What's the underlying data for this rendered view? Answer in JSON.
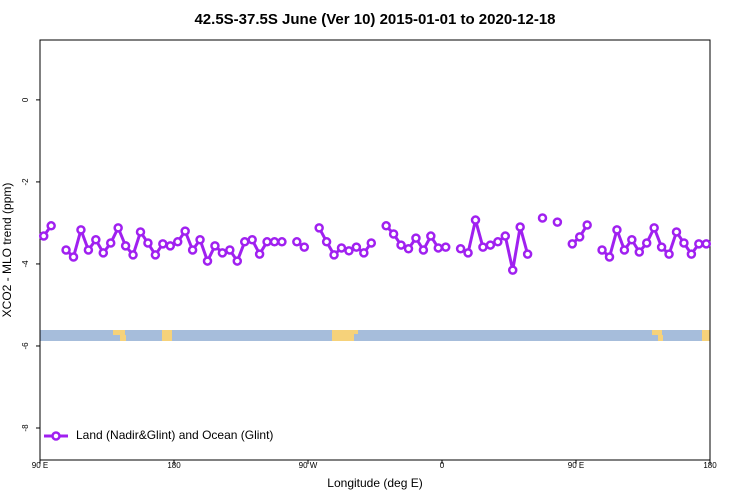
{
  "chart_data": {
    "type": "line",
    "title": "42.5S-37.5S June (Ver 10)   2015-01-01 to 2020-12-18",
    "x_label": "Longitude (deg E)",
    "y_label": "XCO2 - MLO trend (ppm)",
    "xlim": [
      90,
      540
    ],
    "ylim": [
      -8.78,
      1.46
    ],
    "xticks": [
      {
        "value": 90,
        "label": "90 E"
      },
      180,
      {
        "value": 270,
        "label": "90 W"
      },
      {
        "value": 360,
        "label": "0"
      },
      {
        "value": 450,
        "label": "90 E"
      },
      {
        "value": 540,
        "label": "180"
      }
    ],
    "yticks": [
      0,
      -2,
      -4,
      -6,
      -8
    ],
    "legend": "bottom-left",
    "x": [
      92.5,
      97.5,
      102.5,
      107.5,
      112.5,
      117.5,
      122.5,
      127.5,
      132.5,
      137.5,
      142.5,
      147.5,
      152.5,
      157.5,
      162.5,
      167.5,
      172.5,
      177.5,
      182.5,
      187.5,
      192.5,
      197.5,
      202.5,
      207.5,
      212.5,
      217.5,
      222.5,
      227.5,
      232.5,
      237.5,
      242.5,
      247.5,
      252.5,
      257.5,
      262.5,
      267.5,
      272.5,
      277.5,
      282.5,
      287.5,
      292.5,
      297.5,
      302.5,
      307.5,
      312.5,
      317.5,
      322.5,
      327.5,
      332.5,
      337.5,
      342.5,
      347.5,
      352.5,
      357.5,
      362.5,
      367.5,
      372.5,
      377.5,
      382.5,
      387.5,
      392.5,
      397.5,
      402.5,
      407.5,
      412.5,
      417.5,
      422.5,
      427.5,
      432.5,
      437.5,
      442.5,
      447.5,
      452.5,
      457.5,
      462.5,
      467.5,
      472.5,
      477.5,
      482.5,
      487.5,
      492.5,
      497.5,
      502.5,
      507.5,
      512.5,
      517.5,
      522.5,
      527.5,
      532.5,
      537.5
    ],
    "series": [
      {
        "name": "Land (Nadir&Glint) and Ocean (Glint)",
        "color": "#a020f0",
        "values": [
          -3.32,
          -3.07,
          null,
          -3.66,
          -3.83,
          -3.17,
          -3.66,
          -3.41,
          -3.73,
          -3.49,
          -3.12,
          -3.56,
          -3.78,
          -3.22,
          -3.49,
          -3.78,
          -3.51,
          -3.56,
          -3.46,
          -3.2,
          -3.66,
          -3.41,
          -3.93,
          -3.56,
          -3.73,
          -3.66,
          -3.93,
          -3.46,
          -3.41,
          -3.76,
          -3.46,
          -3.46,
          -3.46,
          null,
          -3.46,
          -3.59,
          null,
          -3.12,
          -3.46,
          -3.78,
          -3.61,
          -3.68,
          -3.59,
          -3.73,
          -3.49,
          null,
          -3.07,
          -3.27,
          -3.54,
          -3.63,
          -3.37,
          -3.66,
          -3.32,
          -3.61,
          -3.59,
          null,
          -3.63,
          -3.73,
          -2.93,
          -3.59,
          -3.54,
          -3.46,
          -3.32,
          -4.15,
          -3.1,
          -3.76,
          null,
          -2.88,
          null,
          -2.98,
          null,
          -3.51,
          -3.34,
          -3.05,
          null,
          -3.66,
          -3.83,
          -3.17,
          -3.66,
          -3.41,
          -3.71,
          -3.49,
          -3.12,
          -3.59,
          -3.76,
          -3.22,
          -3.49,
          -3.76,
          -3.51,
          -3.51
        ]
      }
    ]
  }
}
